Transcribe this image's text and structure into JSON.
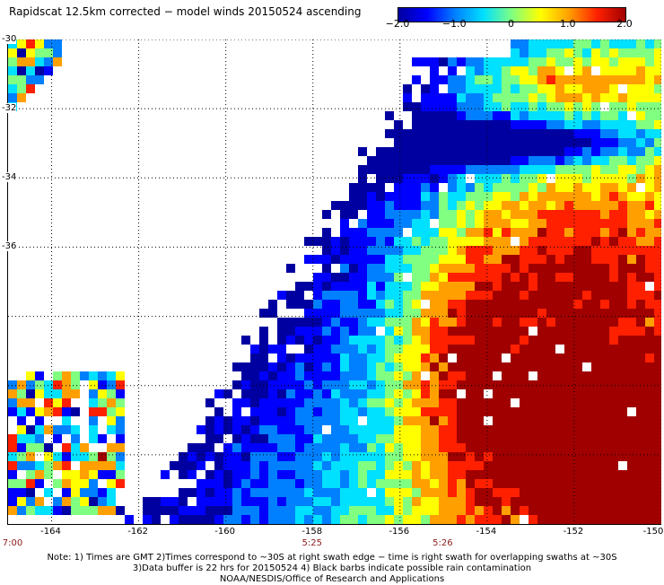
{
  "title": "Rapidscat 12.5km corrected − model winds 20150524 ascending",
  "colorbar": {
    "ticks": [
      "−2.0",
      "−1.0",
      "0",
      "1.0",
      "2.0"
    ],
    "tick_values": [
      -2.0,
      -1.0,
      0,
      1.0,
      2.0
    ],
    "range": [
      -2.0,
      2.0
    ],
    "colors": [
      "#0000a0",
      "#0000ff",
      "#0080ff",
      "#00e0ff",
      "#80ff80",
      "#ffff00",
      "#ffa000",
      "#ff2000",
      "#a00000"
    ]
  },
  "map": {
    "lon_range": [
      -165,
      -150
    ],
    "lat_range": [
      -44,
      -30
    ],
    "lat_labels": [
      "-30",
      "-32",
      "-34",
      "-36"
    ],
    "lat_values": [
      -30,
      -32,
      -34,
      -36
    ],
    "lon_labels": [
      "-164",
      "-162",
      "-160",
      "-158",
      "-156",
      "-154",
      "-152",
      "-150"
    ],
    "lon_values": [
      -164,
      -162,
      -160,
      -158,
      -156,
      -154,
      -152,
      -150
    ],
    "time_labels": [
      "7:00",
      "5:25",
      "5:26"
    ],
    "time_lons": [
      -165,
      -158,
      -155
    ],
    "gridlines": true
  },
  "notes": [
    "Note: 1) Times are GMT 2)Times correspond to ~30S at right swath edge − time is right swath for overlapping swaths at ~30S",
    "3)Data buffer is 22 hrs for 20150524 4) Black barbs indicate possible rain contamination",
    "NOAA/NESDIS/Office of Research and Applications"
  ]
}
